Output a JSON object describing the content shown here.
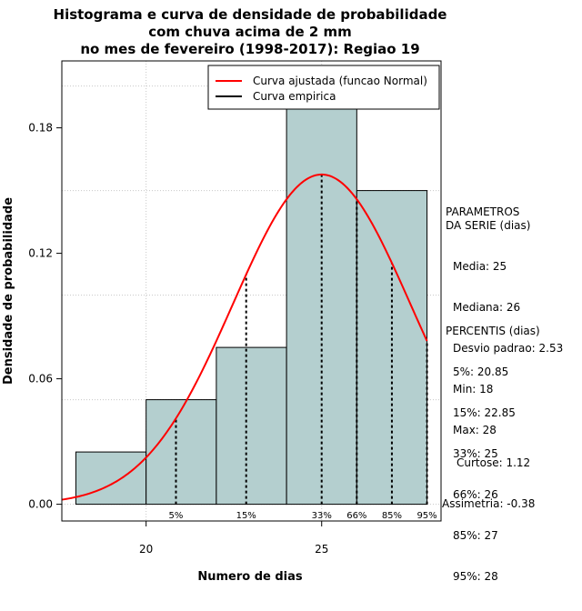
{
  "chart_data": {
    "type": "histogram",
    "title": [
      "Histograma e curva de densidade de probabilidade",
      "com chuva acima de 2 mm",
      "no mes de fevereiro (1998-2017): Regiao 19"
    ],
    "xlabel": "Numero de dias",
    "ylabel": "Densidade de probabilidade",
    "xlim": [
      17.6,
      28.4
    ],
    "ylim": [
      -0.008,
      0.212
    ],
    "x_ticks": [
      20,
      25
    ],
    "y_ticks": [
      0.0,
      0.06,
      0.12,
      0.18
    ],
    "y_tick_labels": [
      "0.00",
      "0.06",
      "0.12",
      "0.18"
    ],
    "grid_y": [
      0.0,
      0.05,
      0.1,
      0.15,
      0.2
    ],
    "grid_x": [
      20,
      25
    ],
    "bars": [
      {
        "start": 18,
        "end": 20,
        "density": 0.025
      },
      {
        "start": 20,
        "end": 22,
        "density": 0.05
      },
      {
        "start": 22,
        "end": 24,
        "density": 0.075
      },
      {
        "start": 24,
        "end": 26,
        "density": 0.2
      },
      {
        "start": 26,
        "end": 28,
        "density": 0.15
      }
    ],
    "normal_curve": {
      "mean": 25,
      "sd": 2.53,
      "x_range": [
        17.6,
        28.0
      ],
      "color": "#ff0000"
    },
    "percentile_lines": [
      {
        "label": "5%",
        "x": 20.85
      },
      {
        "label": "15%",
        "x": 22.85
      },
      {
        "label": "33%",
        "x": 25
      },
      {
        "label": "66%",
        "x": 26
      },
      {
        "label": "85%",
        "x": 27
      },
      {
        "label": "95%",
        "x": 28
      }
    ],
    "legend": {
      "position": "top-right",
      "entries": [
        {
          "label": "Curva ajustada (funcao Normal)",
          "color": "#ff0000"
        },
        {
          "label": "Curva empirica",
          "color": "#000000"
        }
      ]
    },
    "bar_color": "#b4cfcf"
  },
  "parametros": {
    "title": "PARAMETROS\nDA SERIE (dias)",
    "lines": [
      "Media: 25",
      "Mediana: 26",
      "Desvio padrao: 2.53",
      "Min: 18",
      "Max: 28"
    ]
  },
  "percentis": {
    "title": "PERCENTIS (dias)",
    "lines": [
      "5%: 20.85",
      "15%: 22.85",
      "33%: 25",
      "66%: 26",
      "85%: 27",
      "95%: 28"
    ]
  },
  "shape": {
    "lines": [
      "Curtose: 1.12",
      "Assimetria: -0.38"
    ]
  }
}
